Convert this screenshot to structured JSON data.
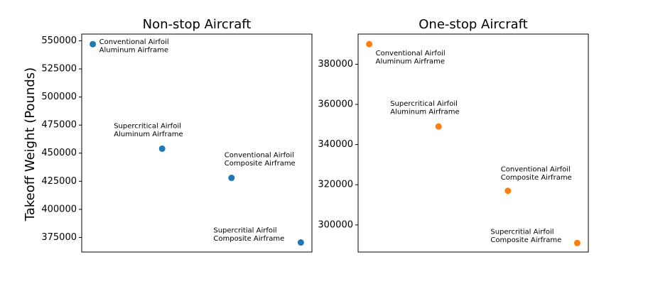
{
  "ylabel": "Takeoff Weight (Pounds)",
  "chart_data": [
    {
      "type": "scatter",
      "title": "Non-stop Aircraft",
      "color": "#1f77b4",
      "ylabel": "Takeoff Weight (Pounds)",
      "ylim": [
        362000,
        556000
      ],
      "yticks": [
        375000,
        400000,
        425000,
        450000,
        475000,
        500000,
        525000,
        550000
      ],
      "ytick_labels": [
        "375000",
        "400000",
        "425000",
        "450000",
        "475000",
        "500000",
        "525000",
        "550000"
      ],
      "xticks_visible": false,
      "points": [
        {
          "x": 0,
          "y": 547000,
          "label": [
            "Conventional Airfoil",
            "Aluminum Airframe"
          ]
        },
        {
          "x": 1,
          "y": 454000,
          "label": [
            "Supercritical Airfoil",
            "Aluminum Airframe"
          ]
        },
        {
          "x": 2,
          "y": 428000,
          "label": [
            "Conventional Airfoil",
            "Composite Airframe"
          ]
        },
        {
          "x": 3,
          "y": 370500,
          "label": [
            "Supercritial Airfoil",
            "Composite Airframe"
          ]
        }
      ]
    },
    {
      "type": "scatter",
      "title": "One-stop Aircraft",
      "color": "#ff7f0e",
      "ylim": [
        286500,
        395000
      ],
      "yticks": [
        300000,
        320000,
        340000,
        360000,
        380000
      ],
      "ytick_labels": [
        "300000",
        "320000",
        "340000",
        "360000",
        "380000"
      ],
      "xticks_visible": false,
      "points": [
        {
          "x": 0,
          "y": 390000,
          "label": [
            "Conventional Airfoil",
            "Aluminum Airframe"
          ]
        },
        {
          "x": 1,
          "y": 349000,
          "label": [
            "Supercritical Airfoil",
            "Aluminum Airframe"
          ]
        },
        {
          "x": 2,
          "y": 317000,
          "label": [
            "Conventional Airfoil",
            "Composite Airframe"
          ]
        },
        {
          "x": 3,
          "y": 291000,
          "label": [
            "Supercritial Airfoil",
            "Composite Airframe"
          ]
        }
      ]
    }
  ]
}
